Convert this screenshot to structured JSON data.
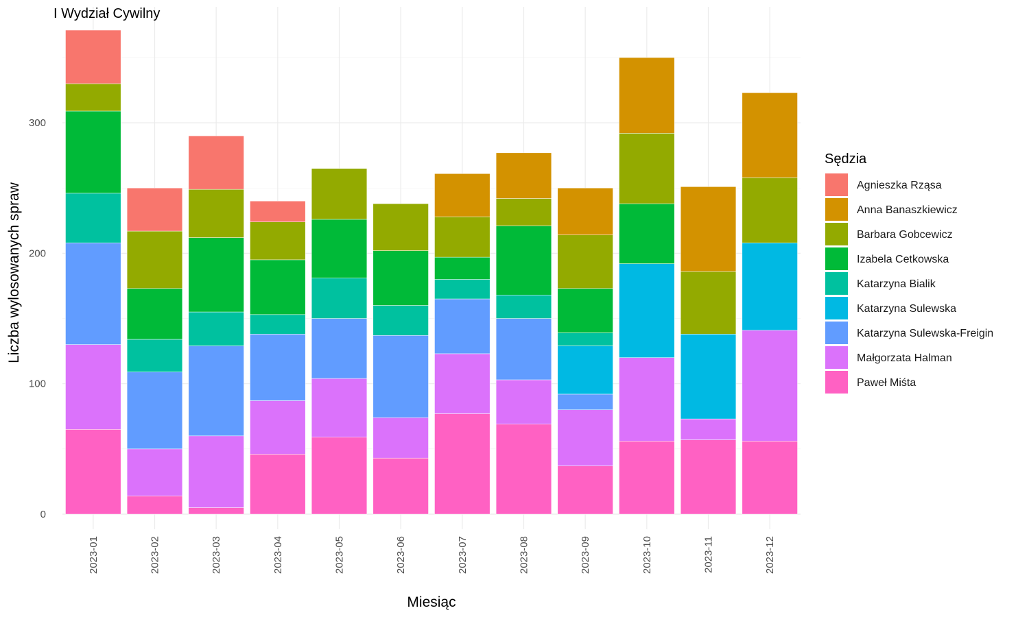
{
  "chart_data": {
    "type": "bar",
    "stacked": true,
    "title": "I Wydział Cywilny",
    "xlabel": "Miesiąc",
    "ylabel": "Liczba wylosowanych spraw",
    "ylim": [
      0,
      380
    ],
    "yticks": [
      0,
      100,
      200,
      300
    ],
    "grid": true,
    "legend_title": "Sędzia",
    "legend_position": "right",
    "categories": [
      "2023-01",
      "2023-02",
      "2023-03",
      "2023-04",
      "2023-05",
      "2023-06",
      "2023-07",
      "2023-08",
      "2023-09",
      "2023-10",
      "2023-11",
      "2023-12"
    ],
    "series": [
      {
        "name": "Agnieszka Rząsa",
        "color": "#F8766D",
        "values": [
          41,
          33,
          41,
          16,
          0,
          0,
          0,
          0,
          0,
          0,
          0,
          0
        ]
      },
      {
        "name": "Anna Banaszkiewicz",
        "color": "#D39200",
        "values": [
          0,
          0,
          0,
          0,
          0,
          0,
          33,
          35,
          36,
          58,
          65,
          65
        ]
      },
      {
        "name": "Barbara Gobcewicz",
        "color": "#93AA00",
        "values": [
          21,
          44,
          37,
          29,
          39,
          36,
          31,
          21,
          41,
          54,
          48,
          50
        ]
      },
      {
        "name": "Izabela Cetkowska",
        "color": "#00BA38",
        "values": [
          63,
          39,
          57,
          42,
          45,
          42,
          17,
          53,
          34,
          46,
          0,
          0
        ]
      },
      {
        "name": "Katarzyna Bialik",
        "color": "#00C19F",
        "values": [
          38,
          25,
          26,
          15,
          31,
          23,
          15,
          18,
          10,
          0,
          0,
          0
        ]
      },
      {
        "name": "Katarzyna Sulewska",
        "color": "#00B9E3",
        "values": [
          0,
          0,
          0,
          0,
          0,
          0,
          0,
          0,
          37,
          72,
          65,
          67
        ]
      },
      {
        "name": "Katarzyna Sulewska-Freigin",
        "color": "#619CFF",
        "values": [
          78,
          59,
          69,
          51,
          46,
          63,
          42,
          47,
          12,
          0,
          0,
          0
        ]
      },
      {
        "name": "Małgorzata Halman",
        "color": "#DB72FB",
        "values": [
          65,
          36,
          55,
          41,
          45,
          31,
          46,
          34,
          43,
          64,
          16,
          85
        ]
      },
      {
        "name": "Paweł Miśta",
        "color": "#FF61C3",
        "values": [
          65,
          14,
          5,
          46,
          59,
          43,
          77,
          69,
          37,
          56,
          57,
          56
        ]
      }
    ]
  }
}
